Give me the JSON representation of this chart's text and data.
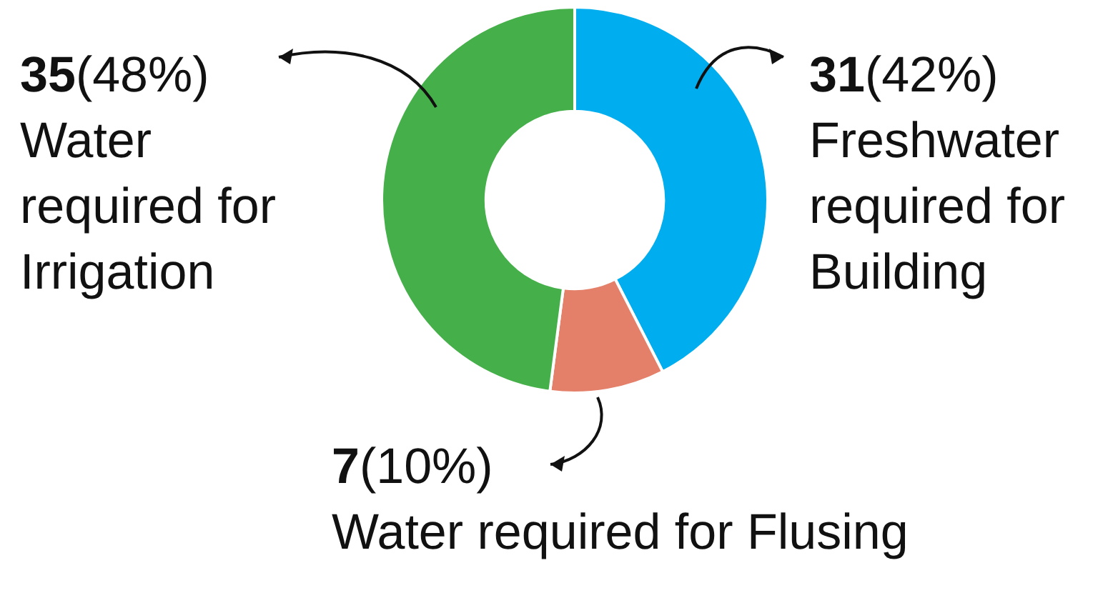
{
  "chart_data": {
    "type": "donut",
    "categories": [
      "Freshwater required for Building",
      "Water required for Flusing",
      "Water required for Irrigation"
    ],
    "values": [
      31,
      7,
      35
    ],
    "colors": [
      "#00aeef",
      "#e4806a",
      "#45b04a"
    ],
    "value_labels": [
      "31(42%)",
      "7(10%)",
      "35(48%)"
    ],
    "legend": false
  }
}
